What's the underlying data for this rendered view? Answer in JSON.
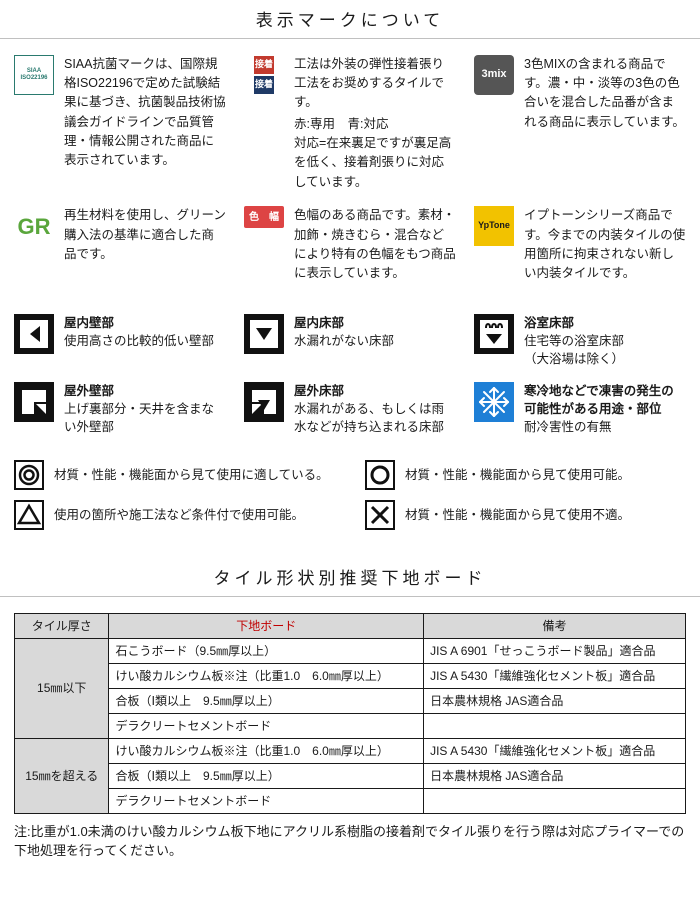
{
  "section1_title": "表示マークについて",
  "marks": {
    "siaa": {
      "icon_label": "SIAA\nISO22196",
      "text": "SIAA抗菌マークは、国際規格ISO22196で定めた試験結果に基づき、抗菌製品技術協議会ガイドラインで品質管理・情報公開された商品に表示されています。"
    },
    "kouhou": {
      "box_top": "接着",
      "box_bottom": "接着",
      "top_color": "#c23a2e",
      "bottom_color": "#1f3a66",
      "text": "工法は外装の弾性接着張り工法をお奨めするタイルです。",
      "extra": "赤:専用　青:対応\n対応=在来裏足ですが裏足高を低く、接着剤張りに対応しています。"
    },
    "mix3": {
      "icon_label": "3mix",
      "text": "3色MIXの含まれる商品です。濃・中・淡等の3色の色合いを混合した品番が含まれる商品に表示しています。"
    },
    "gr": {
      "icon_label": "GR",
      "text": "再生材料を使用し、グリーン購入法の基準に適合した商品です。"
    },
    "irohaba": {
      "icon_label": "色　幅",
      "text": "色幅のある商品です。素材・加飾・焼きむら・混合などにより特有の色幅をもつ商品に表示しています。"
    },
    "yptone": {
      "icon_label": "YpTone",
      "text": "イプトーンシリーズ商品です。今までの内装タイルの使用箇所に拘束されない新しい内装タイルです。"
    }
  },
  "usage": [
    {
      "key": "indoor-wall",
      "title": "屋内壁部",
      "body": "使用高さの比較的低い壁部"
    },
    {
      "key": "indoor-floor",
      "title": "屋内床部",
      "body": "水漏れがない床部"
    },
    {
      "key": "bath-floor",
      "title": "浴室床部",
      "body": "住宅等の浴室床部\n（大浴場は除く）"
    },
    {
      "key": "outdoor-wall",
      "title": "屋外壁部",
      "body": "上げ裏部分・天井を含まない外壁部"
    },
    {
      "key": "outdoor-floor",
      "title": "屋外床部",
      "body": "水漏れがある、もしくは雨水などが持ち込まれる床部"
    },
    {
      "key": "cold",
      "title": "寒冷地などで凍害の発生の可能性がある用途・部位",
      "body": "耐冷害性の有無"
    }
  ],
  "usage_icon_bg": "#111111",
  "usage_icon_fg": "#ffffff",
  "cold_icon_bg": "#1e7fd6",
  "legend": [
    {
      "key": "double-circle",
      "text": "材質・性能・機能面から見て使用に適している。"
    },
    {
      "key": "circle",
      "text": "材質・性能・機能面から見て使用可能。"
    },
    {
      "key": "triangle",
      "text": "使用の箇所や施工法など条件付で使用可能。"
    },
    {
      "key": "cross",
      "text": "材質・性能・機能面から見て使用不適。"
    }
  ],
  "section2_title": "タイル形状別推奨下地ボード",
  "table": {
    "headers": [
      "タイル厚さ",
      "下地ボード",
      "備考"
    ],
    "header_red_index": 1,
    "group1_label": "15㎜以下",
    "group1_rows": [
      [
        "石こうボード（9.5㎜厚以上）",
        "JIS A 6901「せっこうボード製品」適合品"
      ],
      [
        "けい酸カルシウム板※注（比重1.0　6.0㎜厚以上）",
        "JIS A 5430「繊維強化セメント板」適合品"
      ],
      [
        "合板（Ⅰ類以上　9.5㎜厚以上）",
        "日本農林規格 JAS適合品"
      ],
      [
        "デラクリートセメントボード",
        ""
      ]
    ],
    "group2_label": "15㎜を超える",
    "group2_rows": [
      [
        "けい酸カルシウム板※注（比重1.0　6.0㎜厚以上）",
        "JIS A 5430「繊維強化セメント板」適合品"
      ],
      [
        "合板（Ⅰ類以上　9.5㎜厚以上）",
        "日本農林規格 JAS適合品"
      ],
      [
        "デラクリートセメントボード",
        ""
      ]
    ]
  },
  "note": "注:比重が1.0未満のけい酸カルシウム板下地にアクリル系樹脂の接着剤でタイル張りを行う際は対応プライマーでの下地処理を行ってください。"
}
